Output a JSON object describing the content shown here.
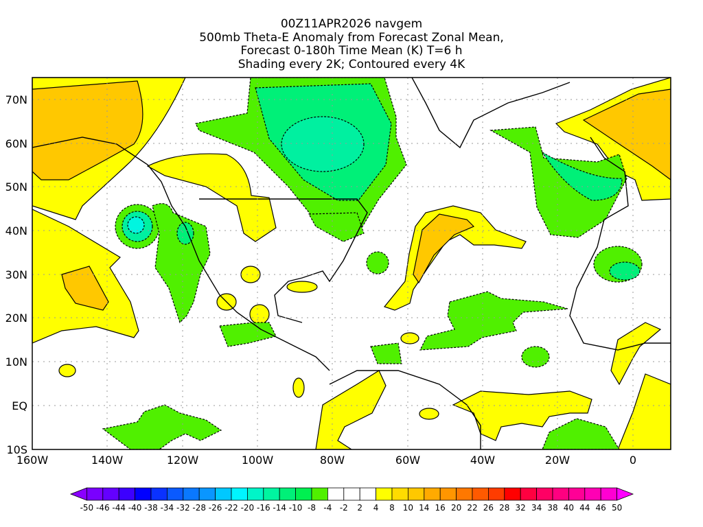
{
  "title_lines": [
    "00Z11APR2026 navgem",
    "500mb Theta-E Anomaly from Forecast Zonal Mean,",
    "Forecast 0-180h Time Mean (K) T=6 h",
    "Shading every 2K; Contoured every 4K"
  ],
  "map": {
    "lon_range": [
      -160,
      10
    ],
    "lat_range": [
      -10,
      75
    ],
    "lat_labels": [
      "70N",
      "60N",
      "50N",
      "40N",
      "30N",
      "20N",
      "10N",
      "EQ",
      "10S"
    ],
    "lon_labels": [
      "160W",
      "140W",
      "120W",
      "100W",
      "80W",
      "60W",
      "40W",
      "20W",
      "0"
    ]
  },
  "colorbar": {
    "labels": [
      "-50",
      "-46",
      "-44",
      "-40",
      "-38",
      "-34",
      "-32",
      "-28",
      "-26",
      "-22",
      "-20",
      "-16",
      "-14",
      "-10",
      "-8",
      "-4",
      "-2",
      "2",
      "4",
      "8",
      "10",
      "14",
      "16",
      "20",
      "22",
      "26",
      "28",
      "32",
      "34",
      "38",
      "40",
      "44",
      "46",
      "50"
    ],
    "colors": [
      "#8a00ff",
      "#7a00ff",
      "#6400ff",
      "#3c00ff",
      "#0000ff",
      "#0a32ff",
      "#0a5aff",
      "#0a78ff",
      "#0a96ff",
      "#00c8ff",
      "#00f5ff",
      "#00f5c8",
      "#00f5a0",
      "#00f078",
      "#00f050",
      "#50f000",
      "#ffffff",
      "#ffffff",
      "#ffffff",
      "#ffff00",
      "#ffdc00",
      "#ffc800",
      "#ffaa00",
      "#ff9600",
      "#ff7800",
      "#ff5a00",
      "#ff3c00",
      "#ff0000",
      "#ff0040",
      "#ff0064",
      "#ff0080",
      "#ff0096",
      "#ff00b4",
      "#ff00d2",
      "#ff00ff"
    ]
  }
}
